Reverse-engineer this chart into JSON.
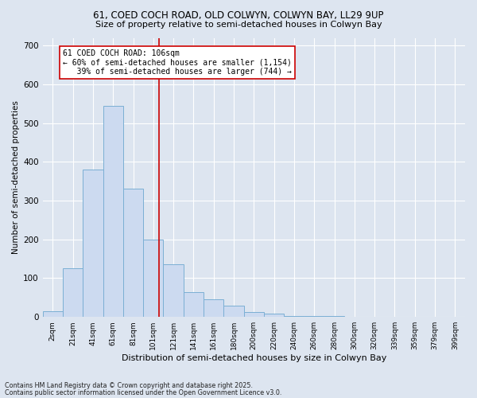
{
  "title1": "61, COED COCH ROAD, OLD COLWYN, COLWYN BAY, LL29 9UP",
  "title2": "Size of property relative to semi-detached houses in Colwyn Bay",
  "xlabel": "Distribution of semi-detached houses by size in Colwyn Bay",
  "ylabel": "Number of semi-detached properties",
  "categories": [
    "2sqm",
    "21sqm",
    "41sqm",
    "61sqm",
    "81sqm",
    "101sqm",
    "121sqm",
    "141sqm",
    "161sqm",
    "180sqm",
    "200sqm",
    "220sqm",
    "240sqm",
    "260sqm",
    "280sqm",
    "300sqm",
    "320sqm",
    "339sqm",
    "359sqm",
    "379sqm",
    "399sqm"
  ],
  "bar_heights": [
    15,
    125,
    380,
    545,
    330,
    200,
    135,
    65,
    45,
    30,
    12,
    8,
    3,
    2,
    2,
    1,
    1,
    1,
    1,
    1,
    1
  ],
  "bar_color": "#ccdaf0",
  "bar_edge_color": "#7bafd4",
  "vline_color": "#cc0000",
  "annotation_text": "61 COED COCH ROAD: 106sqm\n← 60% of semi-detached houses are smaller (1,154)\n   39% of semi-detached houses are larger (744) →",
  "annotation_box_color": "#cc0000",
  "background_color": "#dde5f0",
  "plot_bg_color": "#dde5f0",
  "grid_color": "#ffffff",
  "footnote1": "Contains HM Land Registry data © Crown copyright and database right 2025.",
  "footnote2": "Contains public sector information licensed under the Open Government Licence v3.0.",
  "ylim": [
    0,
    720
  ],
  "yticks": [
    0,
    100,
    200,
    300,
    400,
    500,
    600,
    700
  ]
}
